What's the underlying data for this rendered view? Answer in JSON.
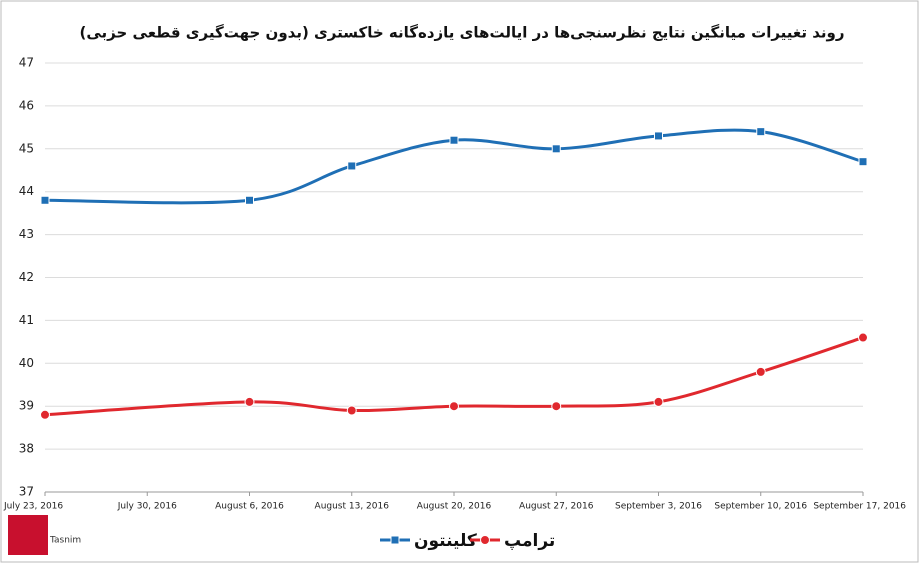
{
  "chart_data": {
    "type": "line",
    "title": "روند تغییرات میانگین نتایج نظرسنجی‌ها در ایالت‌های یازده‌گانه خاکستری (بدون جهت‌گیری قطعی حزبی)",
    "categories": [
      "July 23, 2016",
      "July 30, 2016",
      "August 6, 2016",
      "August 13, 2016",
      "August 20, 2016",
      "August 27, 2016",
      "September 3, 2016",
      "September 10, 2016",
      "September 17, 2016"
    ],
    "series": [
      {
        "name": "کلینتون",
        "color": "#1f6fb5",
        "x": [
          "July 23, 2016",
          "August 6, 2016",
          "August 13, 2016",
          "August 20, 2016",
          "August 27, 2016",
          "September 3, 2016",
          "September 10, 2016",
          "September 17, 2016"
        ],
        "values": [
          43.8,
          43.8,
          44.6,
          45.2,
          45.0,
          45.3,
          45.4,
          44.7
        ]
      },
      {
        "name": "ترامپ",
        "color": "#e0282e",
        "x": [
          "July 23, 2016",
          "August 6, 2016",
          "August 13, 2016",
          "August 20, 2016",
          "August 27, 2016",
          "September 3, 2016",
          "September 10, 2016",
          "September 17, 2016"
        ],
        "values": [
          38.8,
          39.1,
          38.9,
          39.0,
          39.0,
          39.1,
          39.8,
          40.6
        ]
      }
    ],
    "ylim": [
      37,
      47
    ],
    "yticks": [
      37,
      38,
      39,
      40,
      41,
      42,
      43,
      44,
      45,
      46,
      47
    ],
    "grid": true,
    "legend": "bottom",
    "logo": "Tasnim"
  }
}
